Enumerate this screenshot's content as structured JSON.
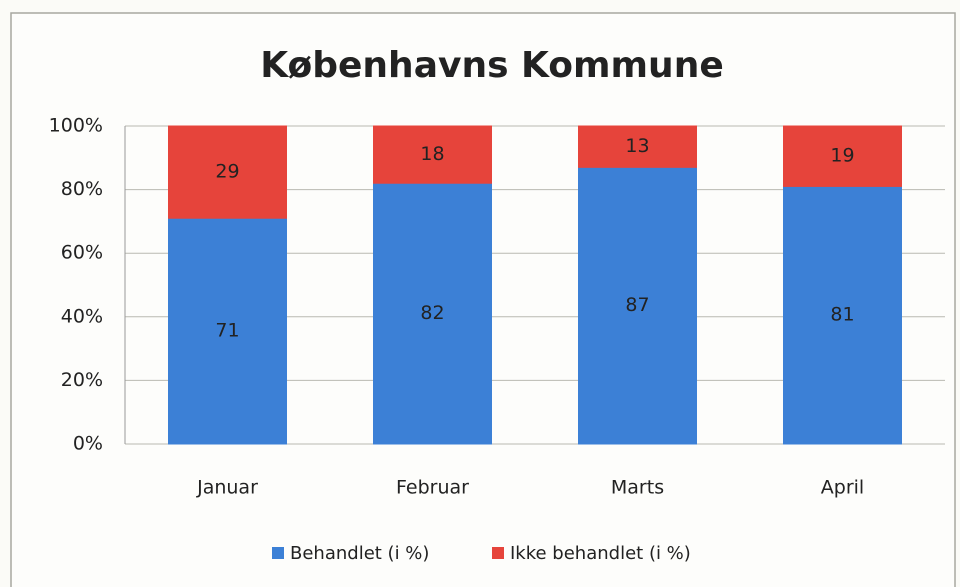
{
  "chart_data": {
    "type": "stacked_bar",
    "title": "Københavns Kommune",
    "categories": [
      "Januar",
      "Februar",
      "Marts",
      "April"
    ],
    "series": [
      {
        "name": "Behandlet (i %)",
        "color": "#3c80d6",
        "values": [
          71,
          82,
          87,
          81
        ]
      },
      {
        "name": "Ikke behandlet (i %)",
        "color": "#e6443b",
        "values": [
          29,
          18,
          13,
          19
        ]
      }
    ],
    "ylim": [
      0,
      100
    ],
    "yticks": [
      {
        "value": 0,
        "label": "0%"
      },
      {
        "value": 20,
        "label": "20%"
      },
      {
        "value": 40,
        "label": "40%"
      },
      {
        "value": 60,
        "label": "60%"
      },
      {
        "value": 80,
        "label": "80%"
      },
      {
        "value": 100,
        "label": "100%"
      }
    ],
    "grid": true,
    "legend": "bottom"
  }
}
